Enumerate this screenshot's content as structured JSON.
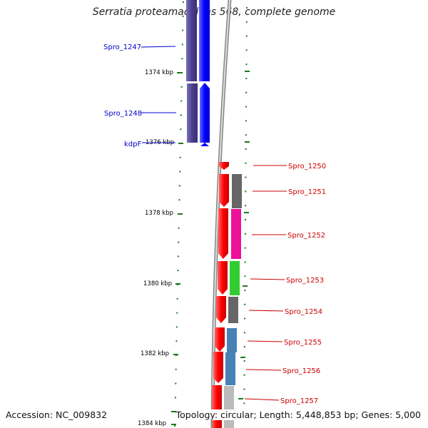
{
  "title": "Serratia proteamaculans 568, complete genome",
  "accession": "Accession: NC_009832",
  "topology": "Topology: circular; Length: 5,448,853 bp; Genes: 5,000",
  "colors": {
    "strand_forward": "#0000ff",
    "strand_forward_cog": "#4a3f8f",
    "strand_reverse": "#ff0000",
    "tick": "#1a7a1a",
    "label_forward": "#0000cc",
    "label_reverse": "#cc0000",
    "backbone": "#999999"
  },
  "scale": {
    "unit": "kbp",
    "labels": [
      "1374 kbp",
      "1376 kbp",
      "1378 kbp",
      "1380 kbp",
      "1382 kbp",
      "1384 kbp"
    ]
  },
  "genes": [
    {
      "name": "Spro_1247",
      "strand": "forward",
      "cog_color": "#4a3f8f"
    },
    {
      "name": "Spro_1248",
      "strand": "forward",
      "cog_color": "#4a3f8f"
    },
    {
      "name": "kdpF",
      "strand": "forward",
      "cog_color": null
    },
    {
      "name": "Spro_1250",
      "strand": "reverse",
      "cog_color": null
    },
    {
      "name": "Spro_1251",
      "strand": "reverse",
      "cog_color": "#666666"
    },
    {
      "name": "Spro_1252",
      "strand": "reverse",
      "cog_color": "#ee1199"
    },
    {
      "name": "Spro_1253",
      "strand": "reverse",
      "cog_color": "#33cc33"
    },
    {
      "name": "Spro_1254",
      "strand": "reverse",
      "cog_color": "#666666"
    },
    {
      "name": "Spro_1255",
      "strand": "reverse",
      "cog_color": "#4682b4"
    },
    {
      "name": "Spro_1256",
      "strand": "reverse",
      "cog_color": "#4682b4"
    },
    {
      "name": "Spro_1257",
      "strand": "reverse",
      "cog_color": "#bbbbbb"
    }
  ]
}
